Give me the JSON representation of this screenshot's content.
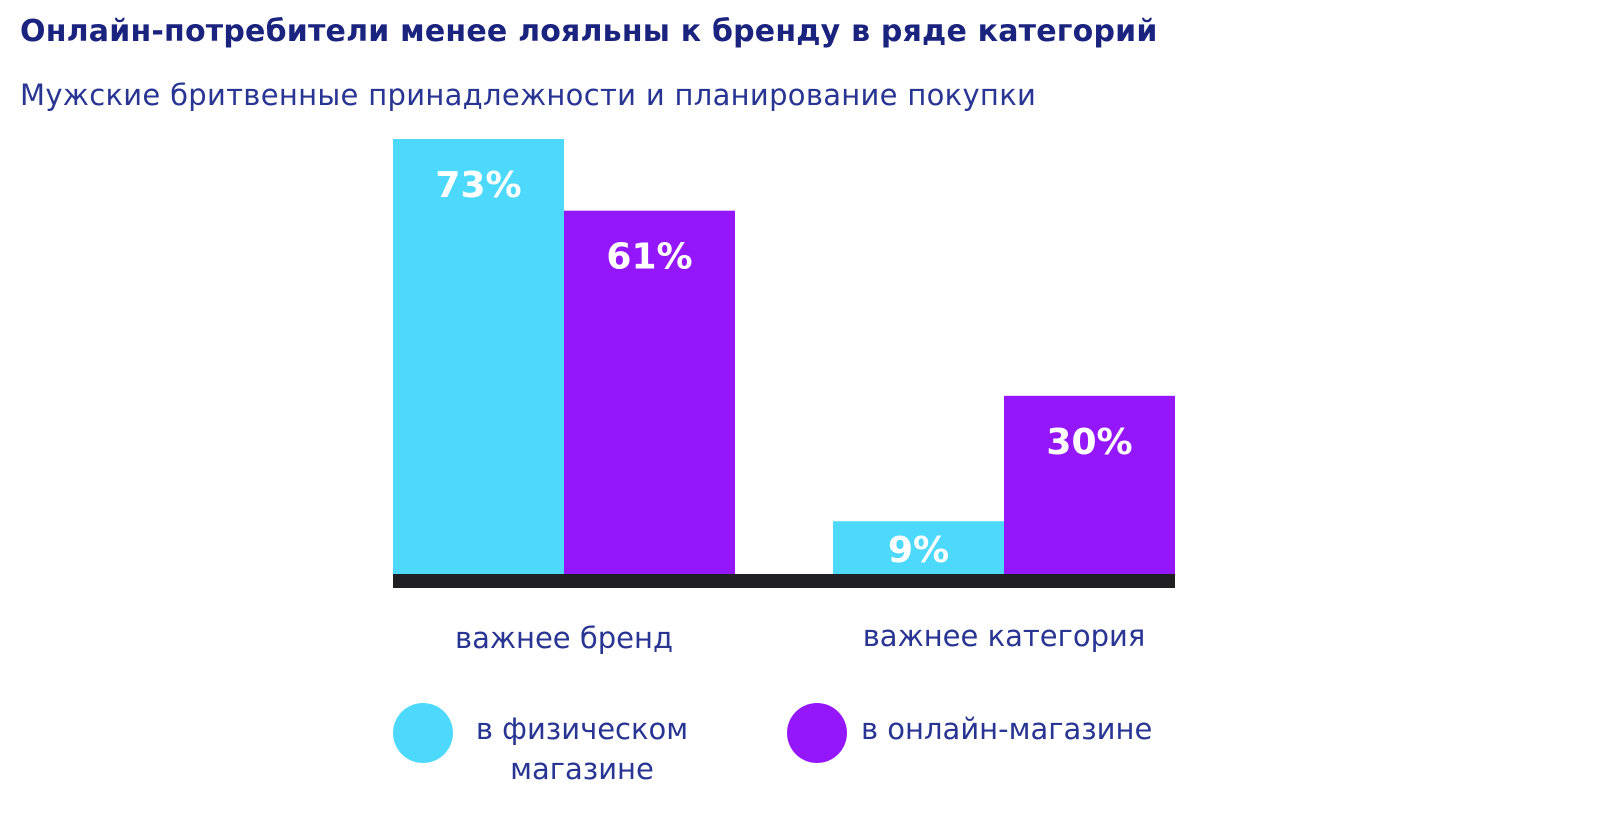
{
  "title": "Онлайн-потребители менее лояльны к бренду в ряде категорий",
  "subtitle": "Мужские бритвенные принадлежности и планирование покупки",
  "colors": {
    "series_physical": "#4dd9fb",
    "series_online": "#9417fb",
    "axis": "#1f1f24",
    "text_dark": "#1a237e",
    "text": "#283593"
  },
  "chart_data": {
    "type": "bar",
    "categories": [
      "важнее бренд",
      "важнее категория"
    ],
    "series": [
      {
        "name": "в физическом магазине",
        "values": [
          73,
          9
        ],
        "labels": [
          "73%",
          "9%"
        ]
      },
      {
        "name": "в онлайн-магазине",
        "values": [
          61,
          30
        ],
        "labels": [
          "61%",
          "30%"
        ]
      }
    ],
    "ylim": [
      0,
      73
    ],
    "grid": false,
    "legend_position": "bottom"
  },
  "legend": [
    {
      "lines": [
        "в физическом",
        "магазине"
      ]
    },
    {
      "lines": [
        "в онлайн-магазине"
      ]
    }
  ]
}
